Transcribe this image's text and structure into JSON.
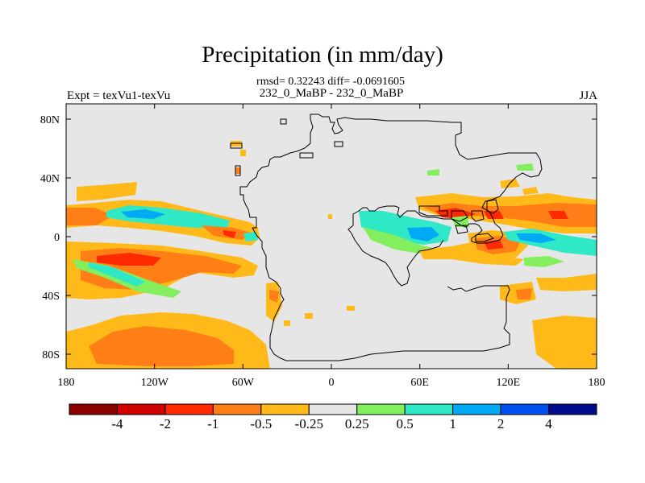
{
  "title": "Precipitation (in mm/day)",
  "subtitle": "rmsd= 0.32243  diff= -0.0691605",
  "left_label": "Expt = texVu1-texVu",
  "center_label": "232_0_MaBP - 232_0_MaBP",
  "right_label": "JJA",
  "axes": {
    "y_ticks": [
      "80N",
      "40N",
      "0",
      "40S",
      "80S"
    ],
    "x_ticks": [
      "180",
      "120W",
      "60W",
      "0",
      "60E",
      "120E",
      "180"
    ]
  },
  "colorbar": {
    "colors": [
      "#8b0000",
      "#d00000",
      "#ff2a00",
      "#ff7f16",
      "#ffba1a",
      "#e6e6e6",
      "#84ef5e",
      "#2ee8c6",
      "#00aaf5",
      "#0050f0",
      "#000c8c"
    ],
    "labels": [
      "-4",
      "-2",
      "-1",
      "-0.5",
      "-0.25",
      "0.25",
      "0.5",
      "1",
      "2",
      "4"
    ]
  },
  "colors": {
    "background_field": "#e6e6e6",
    "coastline": "#000000"
  }
}
